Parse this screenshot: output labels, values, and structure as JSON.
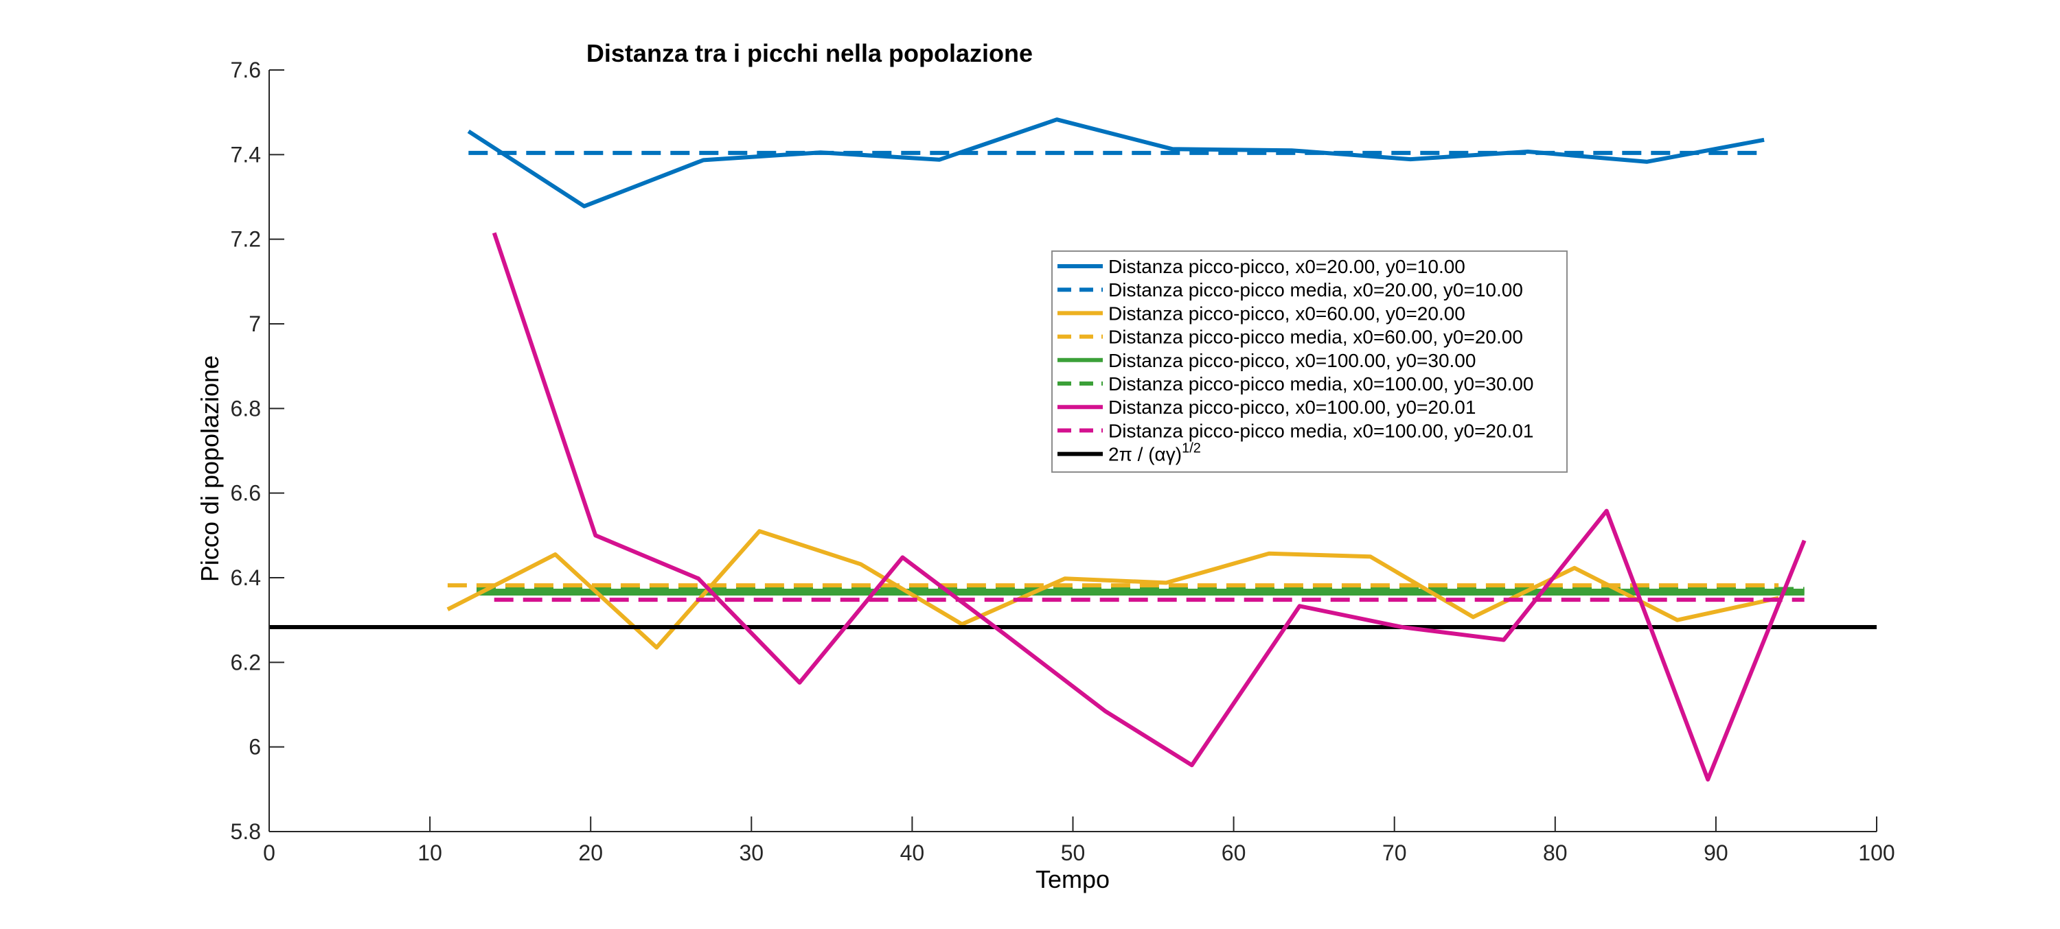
{
  "chart_data": {
    "type": "line",
    "title": "Distanza tra i picchi nella popolazione",
    "xlabel": "Tempo",
    "ylabel": "Picco di popolazione",
    "xlim": [
      0,
      100
    ],
    "ylim": [
      5.8,
      7.6
    ],
    "xticks": [
      0,
      10,
      20,
      30,
      40,
      50,
      60,
      70,
      80,
      90,
      100
    ],
    "yticks": [
      5.8,
      6,
      6.2,
      6.4,
      6.6,
      6.8,
      7,
      7.2,
      7.4,
      7.6
    ],
    "xtick_labels": [
      "0",
      "10",
      "20",
      "30",
      "40",
      "50",
      "60",
      "70",
      "80",
      "90",
      "100"
    ],
    "ytick_labels": [
      "5.8",
      "6",
      "6.2",
      "6.4",
      "6.6",
      "6.8",
      "7",
      "7.2",
      "7.4",
      "7.6"
    ],
    "grid": false,
    "legend_position": "top-center",
    "series": [
      {
        "name": "Distanza picco-picco, x0=20.00, y0=10.00",
        "color": "#0072BD",
        "style": "solid",
        "x": [
          12.4,
          19.6,
          27.0,
          34.3,
          41.7,
          49.0,
          56.2,
          63.6,
          71.0,
          78.3,
          85.7,
          93.0
        ],
        "y": [
          7.455,
          7.278,
          7.387,
          7.405,
          7.388,
          7.483,
          7.413,
          7.41,
          7.389,
          7.407,
          7.383,
          7.435
        ]
      },
      {
        "name": "Distanza picco-picco media, x0=20.00, y0=10.00",
        "color": "#0072BD",
        "style": "dashed",
        "x": [
          12.4,
          93.0
        ],
        "y": [
          7.404,
          7.404
        ]
      },
      {
        "name": "Distanza picco-picco, x0=60.00, y0=20.00",
        "color": "#EDB120",
        "style": "solid",
        "x": [
          11.1,
          17.8,
          24.1,
          30.5,
          36.8,
          43.1,
          49.5,
          55.8,
          62.2,
          68.5,
          74.9,
          81.2,
          87.6,
          93.9
        ],
        "y": [
          6.325,
          6.455,
          6.235,
          6.51,
          6.432,
          6.29,
          6.398,
          6.388,
          6.457,
          6.45,
          6.307,
          6.423,
          6.3,
          6.352
        ]
      },
      {
        "name": "Distanza picco-picco media, x0=60.00, y0=20.00",
        "color": "#EDB120",
        "style": "dashed",
        "x": [
          11.1,
          93.9
        ],
        "y": [
          6.382,
          6.382
        ]
      },
      {
        "name": "Distanza picco-picco, x0=100.00, y0=30.00",
        "color": "#3BA038",
        "style": "solid",
        "x": [
          12.9,
          95.5
        ],
        "y": [
          6.366,
          6.366
        ]
      },
      {
        "name": "Distanza picco-picco media, x0=100.00, y0=30.00",
        "color": "#3BA038",
        "style": "dashed",
        "x": [
          12.9,
          95.5
        ],
        "y": [
          6.37,
          6.37
        ]
      },
      {
        "name": "Distanza picco-picco, x0=100.00, y0=20.01",
        "color": "#D4118F",
        "style": "solid",
        "x": [
          14.0,
          20.3,
          26.7,
          33.0,
          39.4,
          45.7,
          52.0,
          57.4,
          64.1,
          70.5,
          76.8,
          83.2,
          89.5,
          95.5
        ],
        "y": [
          7.215,
          6.5,
          6.398,
          6.152,
          6.448,
          6.268,
          6.085,
          5.957,
          6.333,
          6.283,
          6.253,
          6.558,
          5.923,
          6.488
        ]
      },
      {
        "name": "Distanza picco-picco media, x0=100.00, y0=20.01",
        "color": "#D4118F",
        "style": "dashed",
        "x": [
          14.0,
          95.5
        ],
        "y": [
          6.348,
          6.348
        ]
      },
      {
        "name": "2π / (αγ)1/2",
        "color": "#000000",
        "style": "solid",
        "x": [
          0,
          100
        ],
        "y": [
          6.2832,
          6.2832
        ]
      }
    ],
    "legend": {
      "entries": [
        {
          "label": "Distanza picco-picco, x0=20.00, y0=10.00",
          "color": "#0072BD",
          "style": "solid"
        },
        {
          "label": "Distanza picco-picco media, x0=20.00, y0=10.00",
          "color": "#0072BD",
          "style": "dashed"
        },
        {
          "label": "Distanza picco-picco, x0=60.00, y0=20.00",
          "color": "#EDB120",
          "style": "solid"
        },
        {
          "label": "Distanza picco-picco media, x0=60.00, y0=20.00",
          "color": "#EDB120",
          "style": "dashed"
        },
        {
          "label": "Distanza picco-picco, x0=100.00, y0=30.00",
          "color": "#3BA038",
          "style": "solid"
        },
        {
          "label": "Distanza picco-picco media, x0=100.00, y0=30.00",
          "color": "#3BA038",
          "style": "dashed"
        },
        {
          "label": "Distanza picco-picco, x0=100.00, y0=20.01",
          "color": "#D4118F",
          "style": "solid"
        },
        {
          "label": "Distanza picco-picco media, x0=100.00, y0=20.01",
          "color": "#D4118F",
          "style": "dashed"
        }
      ],
      "formula_entry": {
        "color": "#000000",
        "style": "solid",
        "main": "2π  /  (αγ)",
        "sup": "1/2"
      }
    }
  }
}
